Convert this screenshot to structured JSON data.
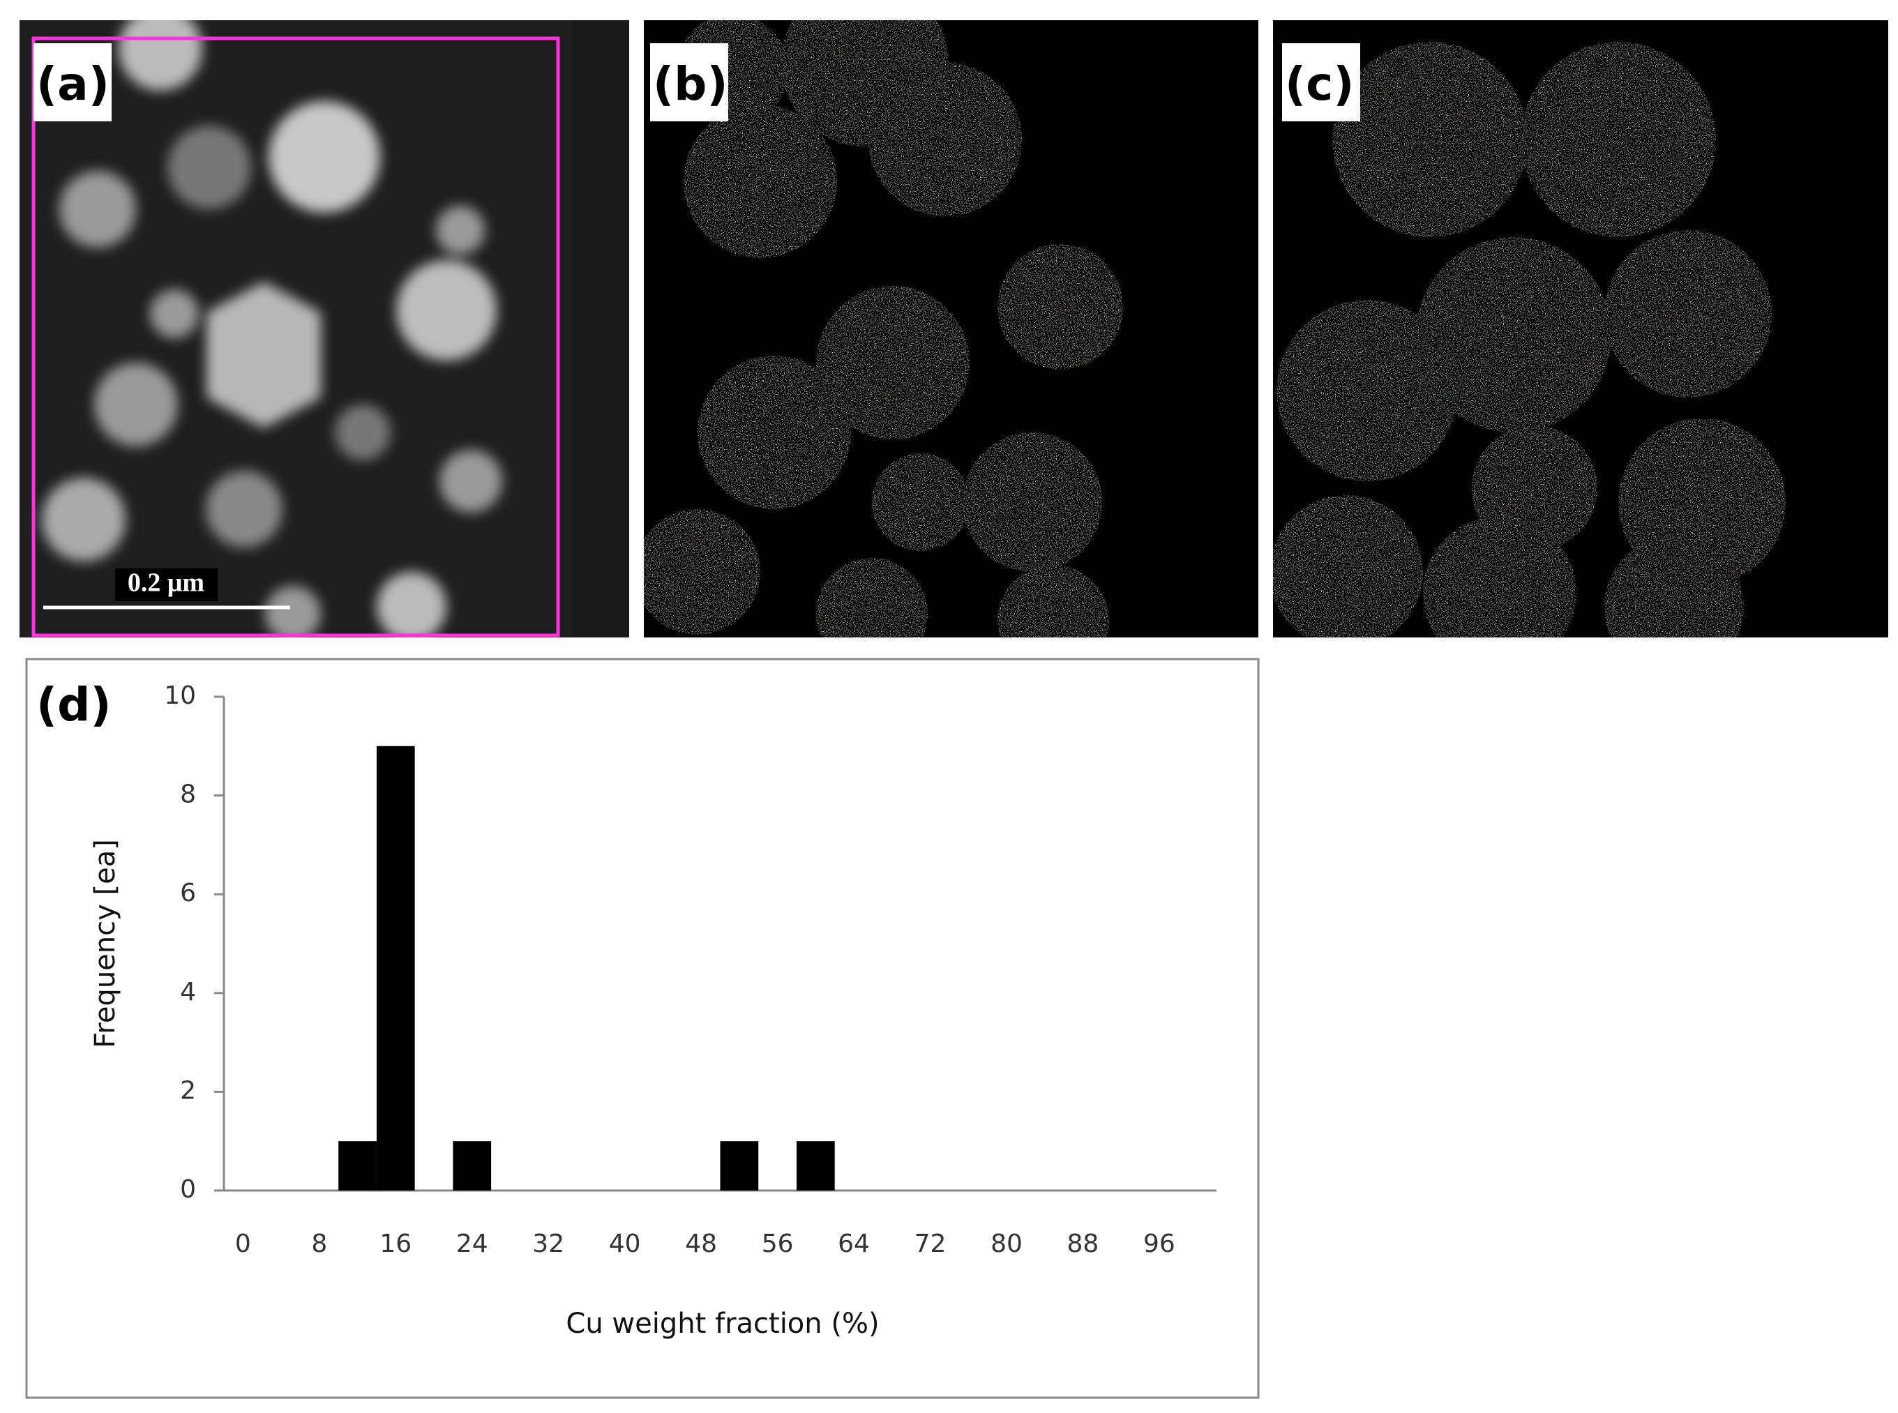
{
  "panel_labels": [
    "(a)",
    "(b)",
    "(c)"
  ],
  "scale_bar": "0.2 μm",
  "chart_data": {
    "type": "bar",
    "panel_label": "(d)",
    "x_label": "Cu weight fraction (%)",
    "y_label": "Frequency [ea]",
    "categories": [
      0,
      null,
      8,
      null,
      16,
      null,
      24,
      null,
      32,
      null,
      40,
      null,
      48,
      null,
      56,
      null,
      64,
      null,
      72,
      null,
      80,
      null,
      88,
      null,
      96,
      null
    ],
    "values": [
      0,
      0,
      0,
      1,
      9,
      0,
      1,
      0,
      0,
      0,
      0,
      0,
      0,
      1,
      0,
      1,
      0,
      0,
      0,
      0,
      0,
      0,
      0,
      0,
      0,
      0
    ],
    "color": "#000000",
    "ylim": [
      0,
      10
    ],
    "yticks": [
      0,
      2,
      4,
      6,
      8,
      10
    ],
    "grid": false
  }
}
